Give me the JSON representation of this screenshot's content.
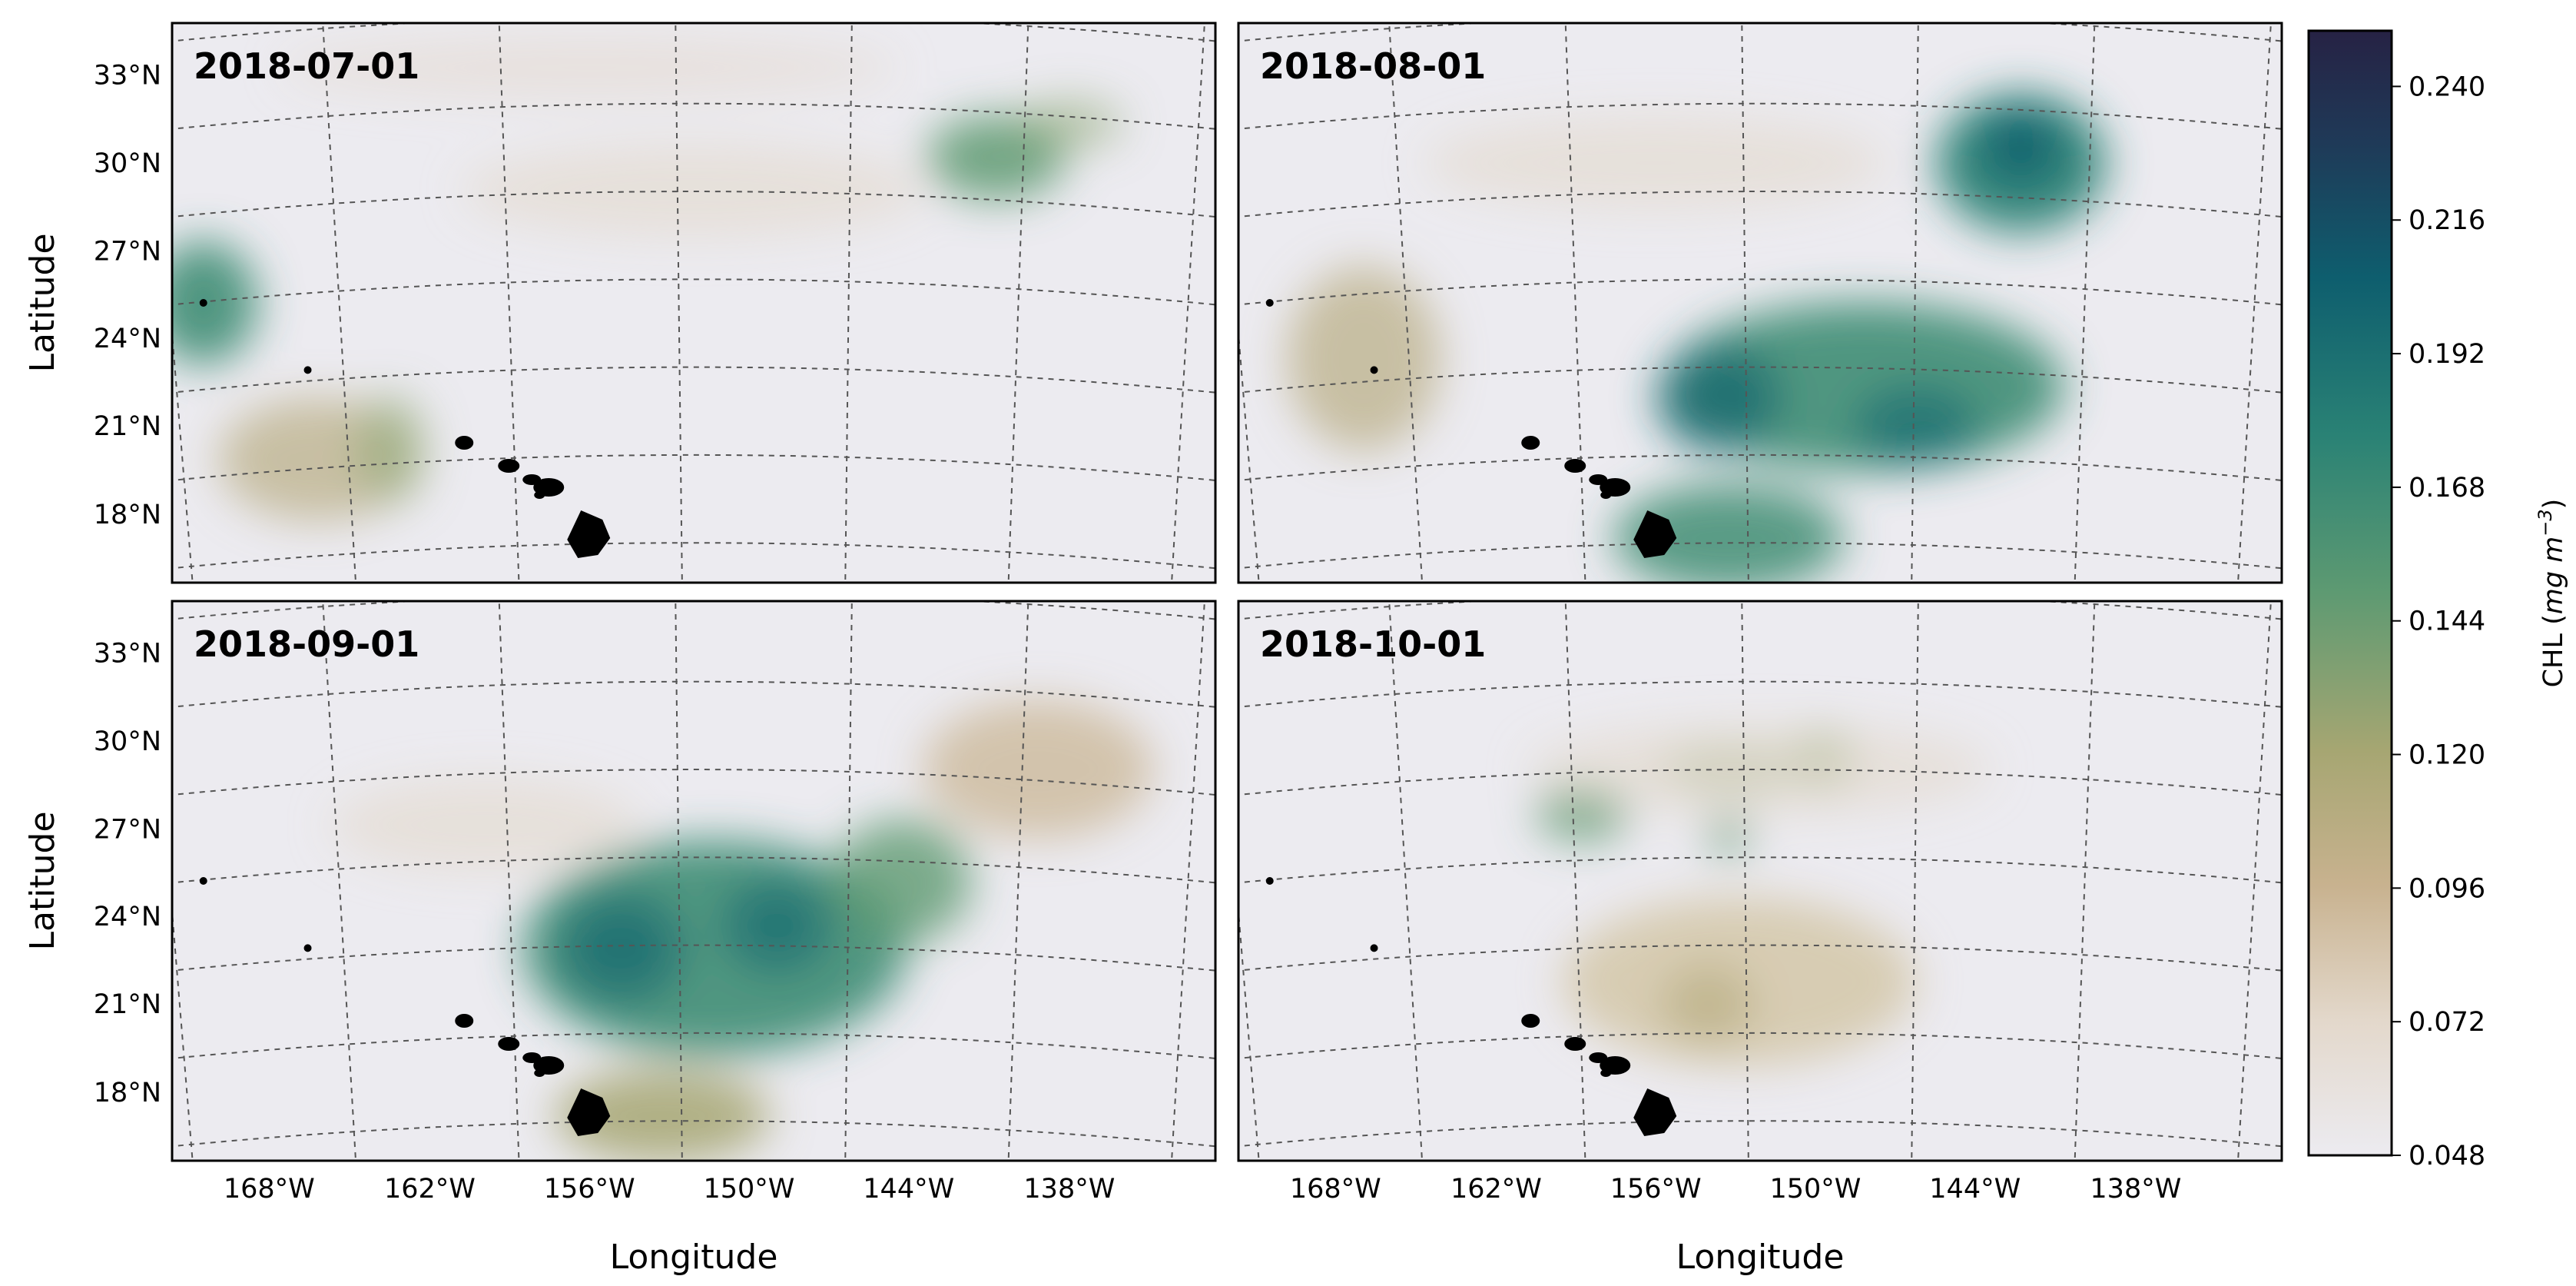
{
  "figure": {
    "panels": [
      {
        "date": "2018-07-01",
        "xlabel": "",
        "ylabel": "Latitude"
      },
      {
        "date": "2018-08-01",
        "xlabel": "",
        "ylabel": ""
      },
      {
        "date": "2018-09-01",
        "xlabel": "Longitude",
        "ylabel": "Latitude"
      },
      {
        "date": "2018-10-01",
        "xlabel": "Longitude",
        "ylabel": ""
      }
    ],
    "lat_ticks": [
      "33°N",
      "30°N",
      "27°N",
      "24°N",
      "21°N",
      "18°N"
    ],
    "lon_ticks": [
      "168°W",
      "162°W",
      "156°W",
      "150°W",
      "144°W",
      "138°W"
    ],
    "colorbar": {
      "title_main": "CHL (",
      "title_italic": "mg m",
      "title_sup": "−3",
      "title_close": ")",
      "ticks": [
        "0.240",
        "0.216",
        "0.192",
        "0.168",
        "0.144",
        "0.120",
        "0.096",
        "0.072",
        "0.048"
      ],
      "min": 0.048,
      "max": 0.25,
      "colors": [
        "#ecebf0",
        "#e3d8cb",
        "#c8b28f",
        "#a6a672",
        "#5e9a72",
        "#2a8275",
        "#0e5e6e",
        "#1f3a58",
        "#262244"
      ]
    },
    "land_color": "#000000",
    "gridline_color": "#555555"
  }
}
